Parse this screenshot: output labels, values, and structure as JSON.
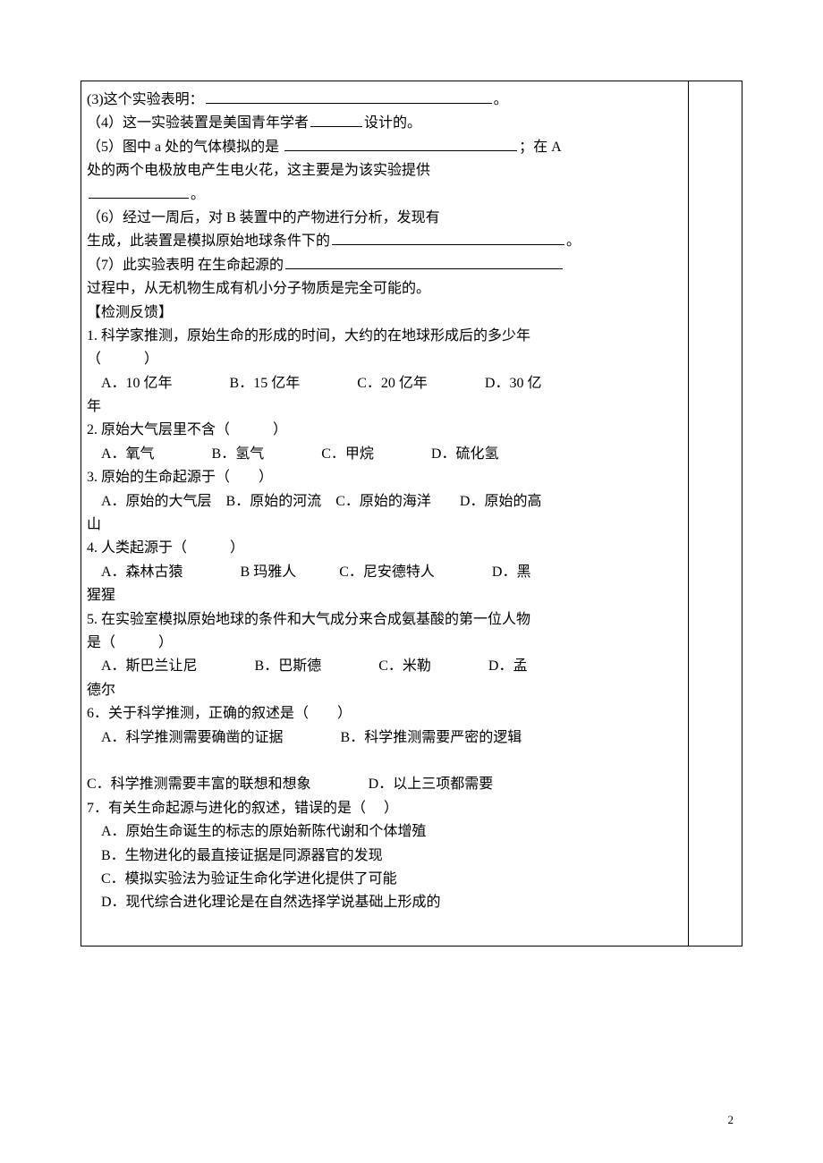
{
  "content": {
    "q3": "(3)这个实验表明：",
    "q3_end": "。",
    "q4_a": "（4）这一实验装置是美国青年学者",
    "q4_b": "设计的。",
    "q5_a": "（5）图中 a 处的气体模拟的是  ",
    "q5_b": "；在 A",
    "q5_c": "处的两个电极放电产生电火花，这主要是为该实验提供",
    "q5_d": "。",
    "q6_a": "（6）经过一周后，对 B 装置中的产物进行分析，发现有",
    "q6_b": "生成，此装置是模拟原始地球条件下的",
    "q6_c": "。",
    "q7_a": "（7）此实验表明  在生命起源的",
    "q7_b": "过程中，从无机物生成有机小分子物质是完全可能的。",
    "section_title": "【检测反馈】",
    "q1_stem": "1. 科学家推测，原始生命的形成的时间，大约的在地球形成后的多少年",
    "q1_paren": "（　　　）",
    "q1_opts": "　A．10 亿年　　　　B．15 亿年　　　　C．20 亿年　　　　D．30 亿",
    "q1_opts_tail": "年",
    "q2_stem": "2. 原始大气层里不含（　　　）",
    "q2_opts": "　A．氧气　　　　B．氢气　　　　C．甲烷　　　　D．硫化氢",
    "q3q_stem": "3. 原始的生命起源于（　　）",
    "q3q_opts": "　A．原始的大气层　B．原始的河流　C．原始的海洋　　D．原始的高",
    "q3q_opts_tail": "山",
    "q4q_stem": "4. 人类起源于（　　　）",
    "q4q_opts": "　A．森林古猿　　　　B 玛雅人　　　C．尼安德特人　　　　D．黑",
    "q4q_opts_tail": "猩猩",
    "q5q_stem_a": "5. 在实验室模拟原始地球的条件和大气成分来合成氨基酸的第一位人物",
    "q5q_stem_b": "是（　　　）",
    "q5q_opts": "　A．斯巴兰让尼　　　　B．巴斯德　　　　C．米勒　　　　D．孟",
    "q5q_opts_tail": "德尔",
    "q6q_stem": "6．关于科学推测，正确的叙述是（　　）",
    "q6q_opts_a": "　A．科学推测需要确凿的证据　　　　B．科学推测需要严密的逻辑",
    "q6q_opts_b": "C．科学推测需要丰富的联想和想象　　　　D．以上三项都需要",
    "q7q_stem": "7．有关生命起源与进化的叙述，错误的是（　 ）",
    "q7q_a": "　A．原始生命诞生的标志的原始新陈代谢和个体增殖",
    "q7q_b": "　B．生物进化的最直接证据是同源器官的发现",
    "q7q_c": "　C．模拟实验法为验证生命化学进化提供了可能",
    "q7q_d": "　D．现代综合进化理论是在自然选择学说基础上形成的"
  },
  "page_number": "2"
}
